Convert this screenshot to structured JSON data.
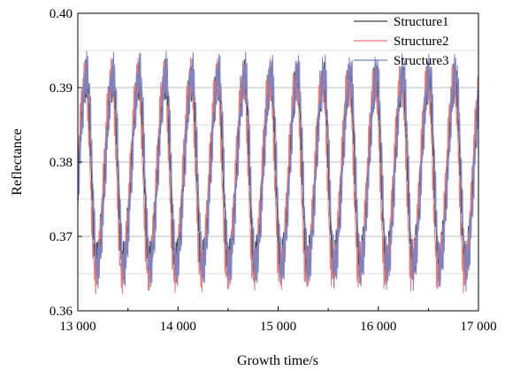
{
  "chart_data": {
    "type": "line",
    "title": "",
    "xlabel": "Growth time/s",
    "ylabel": "Reflectance",
    "xlim": [
      13000,
      17000
    ],
    "ylim": [
      0.36,
      0.4
    ],
    "x_ticks": [
      13000,
      14000,
      15000,
      16000,
      17000
    ],
    "x_tick_labels": [
      "13 000",
      "14 000",
      "15 000",
      "16 000",
      "17 000"
    ],
    "y_ticks": [
      0.36,
      0.37,
      0.38,
      0.39,
      0.4
    ],
    "y_tick_labels": [
      "0.36",
      "0.37",
      "0.38",
      "0.39",
      "0.40"
    ],
    "grid": true,
    "legend_position": "top-right",
    "series": [
      {
        "name": "Structure1",
        "color": "#3a3a3a",
        "period_s": 263,
        "phase_s": 13185,
        "min": 0.3665,
        "max": 0.391,
        "ripple": 0.003
      },
      {
        "name": "Structure2",
        "color": "#e0787a",
        "period_s": 263,
        "phase_s": 13175,
        "min": 0.365,
        "max": 0.3912,
        "ripple": 0.003
      },
      {
        "name": "Structure3",
        "color": "#7b83c0",
        "period_s": 263,
        "phase_s": 13195,
        "min": 0.366,
        "max": 0.3918,
        "ripple": 0.0035
      }
    ]
  }
}
